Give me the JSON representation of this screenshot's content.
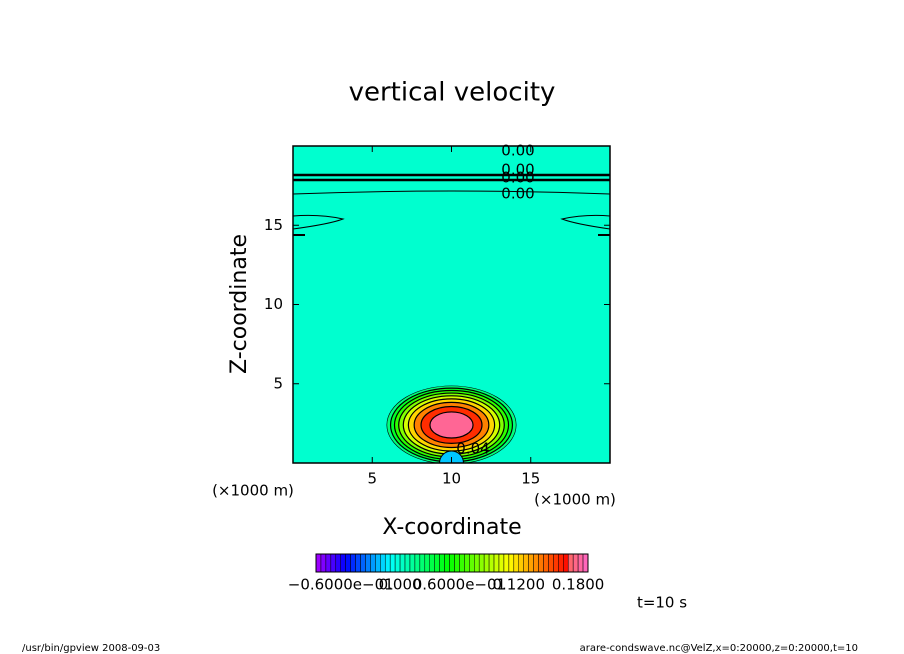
{
  "chart_data": {
    "type": "contour",
    "title": "vertical velocity",
    "x_label": "X-coordinate",
    "y_label": "Z-coordinate",
    "x_unit": "(×1000 m)",
    "y_unit": "(×1000 m)",
    "xlim": [
      0,
      20
    ],
    "xticks": [
      5,
      10,
      15
    ],
    "ylim": [
      0,
      20
    ],
    "yticks": [
      5,
      10,
      15
    ],
    "background_level": 0,
    "contour_levels": [
      0.02,
      0.04,
      0.06,
      0.08,
      0.1,
      0.12,
      0.14,
      0.16,
      0.18
    ],
    "negative_level": -0.02,
    "contour_labels": [
      "0.00",
      "0.00",
      "0.00",
      "0.00",
      "0.04"
    ],
    "colorbar": {
      "lim": [
        -0.085,
        0.19
      ],
      "step": 0.005,
      "ticks": [
        {
          "value": -0.06,
          "label": "−0.6000e−01"
        },
        {
          "value": 0,
          "label": "0.000"
        },
        {
          "value": 0.06,
          "label": "0.6000e−01"
        },
        {
          "value": 0.12,
          "label": "0.1200"
        },
        {
          "value": 0.18,
          "label": "0.1800"
        }
      ]
    },
    "time_label": "t=10 s",
    "footer_left": "/usr/bin/gpview   2008-09-03",
    "footer_right": "arare-condswave.nc@VelZ,x=0:20000,z=0:20000,t=10"
  }
}
